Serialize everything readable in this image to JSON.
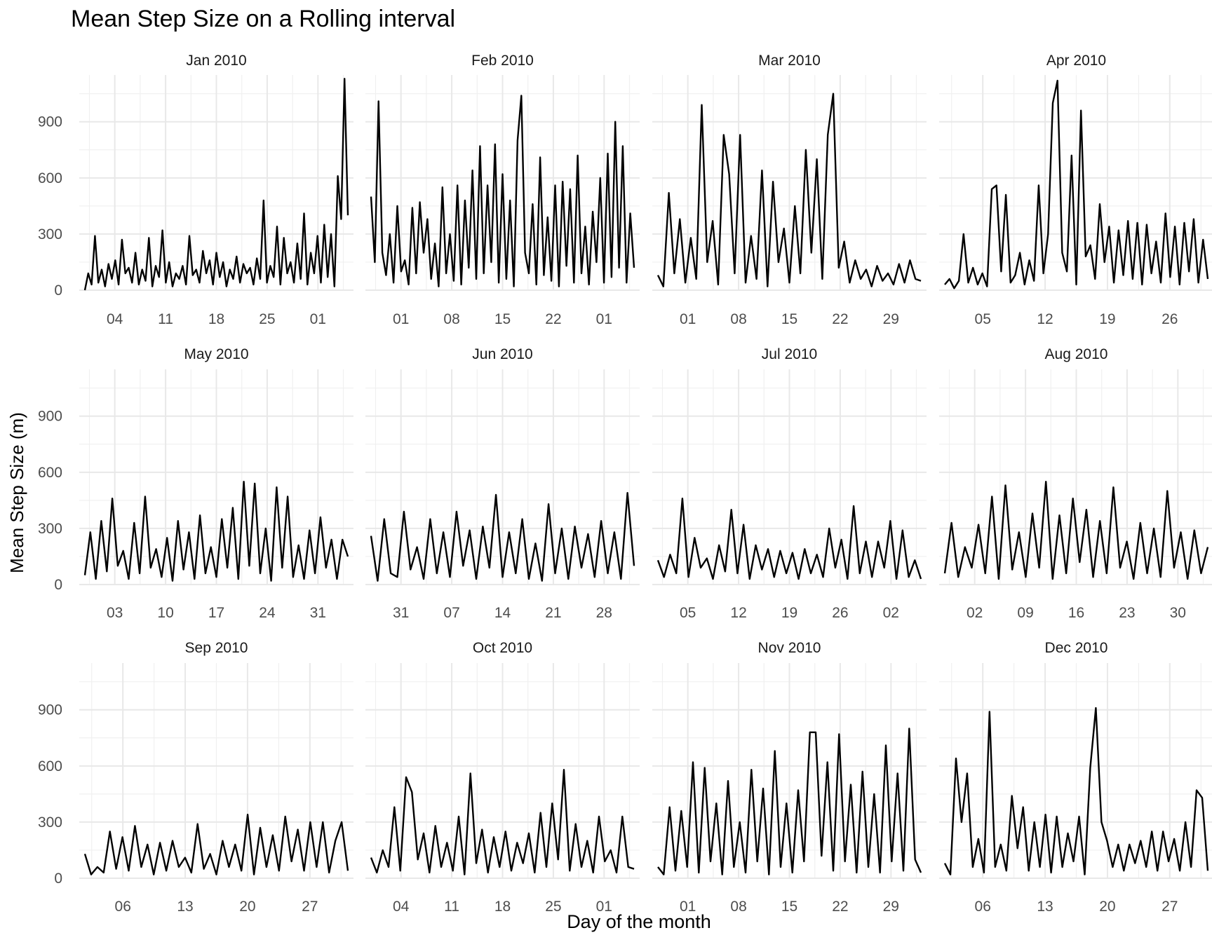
{
  "chart_data": {
    "type": "line",
    "title": "Mean Step Size on a Rolling interval",
    "xlabel": "Day of the month",
    "ylabel": "Mean Step Size (m)",
    "ylim": [
      0,
      1150
    ],
    "yticks": [
      0,
      300,
      600,
      900
    ],
    "grid": true,
    "line_color": "#000000",
    "panels": [
      {
        "label": "Jan 2010",
        "xticks": [
          "04",
          "11",
          "18",
          "25",
          "01"
        ],
        "peaks": [
          0,
          90,
          30,
          290,
          40,
          110,
          20,
          140,
          60,
          160,
          30,
          270,
          90,
          120,
          40,
          200,
          30,
          110,
          50,
          280,
          20,
          130,
          70,
          320,
          40,
          150,
          20,
          90,
          60,
          130,
          30,
          290,
          80,
          110,
          40,
          210,
          90,
          160,
          30,
          200,
          70,
          150,
          20,
          110,
          60,
          180,
          40,
          140,
          90,
          120,
          30,
          170,
          60,
          480,
          40,
          130,
          70,
          340,
          30,
          280,
          90,
          150,
          40,
          250,
          60,
          410,
          30,
          200,
          90,
          290,
          40,
          350,
          70,
          300,
          20,
          610,
          380,
          1130,
          400
        ]
      },
      {
        "label": "Feb 2010",
        "xticks": [
          "01",
          "08",
          "15",
          "22",
          "01"
        ],
        "peaks": [
          500,
          150,
          1010,
          200,
          80,
          300,
          40,
          450,
          100,
          160,
          30,
          440,
          90,
          470,
          200,
          380,
          60,
          250,
          20,
          550,
          90,
          300,
          50,
          560,
          30,
          480,
          120,
          640,
          60,
          770,
          90,
          560,
          150,
          780,
          40,
          620,
          60,
          480,
          20,
          800,
          1040,
          200,
          90,
          460,
          30,
          710,
          80,
          390,
          50,
          560,
          20,
          580,
          130,
          540,
          40,
          720,
          90,
          340,
          30,
          420,
          150,
          600,
          40,
          730,
          70,
          900,
          120,
          770,
          40,
          410,
          120
        ]
      },
      {
        "label": "Mar 2010",
        "xticks": [
          "01",
          "08",
          "15",
          "22",
          "29"
        ],
        "peaks": [
          80,
          20,
          520,
          90,
          380,
          40,
          280,
          60,
          990,
          150,
          370,
          30,
          830,
          620,
          90,
          830,
          40,
          290,
          60,
          640,
          20,
          580,
          150,
          330,
          40,
          450,
          90,
          750,
          200,
          700,
          60,
          830,
          1050,
          120,
          260,
          40,
          160,
          60,
          110,
          20,
          130,
          50,
          90,
          30,
          140,
          40,
          160,
          60,
          50
        ]
      },
      {
        "label": "Apr 2010",
        "xticks": [
          "05",
          "12",
          "19",
          "26"
        ],
        "peaks": [
          30,
          60,
          10,
          50,
          300,
          40,
          120,
          30,
          90,
          20,
          540,
          560,
          100,
          510,
          40,
          80,
          200,
          30,
          160,
          50,
          560,
          90,
          300,
          1000,
          1120,
          200,
          100,
          720,
          30,
          960,
          180,
          240,
          60,
          460,
          150,
          340,
          40,
          320,
          80,
          370,
          60,
          360,
          30,
          350,
          90,
          260,
          40,
          410,
          70,
          340,
          30,
          360,
          100,
          380,
          40,
          270,
          60
        ]
      },
      {
        "label": "May 2010",
        "xticks": [
          "03",
          "10",
          "17",
          "24",
          "31"
        ],
        "peaks": [
          50,
          280,
          30,
          340,
          70,
          460,
          100,
          180,
          30,
          330,
          60,
          470,
          90,
          190,
          40,
          250,
          20,
          340,
          80,
          280,
          30,
          370,
          60,
          200,
          40,
          350,
          90,
          410,
          30,
          550,
          100,
          540,
          60,
          300,
          20,
          520,
          90,
          470,
          40,
          210,
          30,
          290,
          60,
          360,
          90,
          240,
          30,
          240,
          150
        ]
      },
      {
        "label": "Jun 2010",
        "xticks": [
          "31",
          "07",
          "14",
          "21",
          "28"
        ],
        "peaks": [
          260,
          20,
          350,
          60,
          40,
          390,
          80,
          200,
          30,
          350,
          60,
          280,
          40,
          390,
          100,
          290,
          30,
          310,
          90,
          480,
          40,
          280,
          60,
          350,
          30,
          220,
          20,
          430,
          60,
          300,
          30,
          310,
          90,
          270,
          40,
          340,
          60,
          280,
          30,
          490,
          100
        ]
      },
      {
        "label": "Jul 2010",
        "xticks": [
          "05",
          "12",
          "19",
          "26",
          "02"
        ],
        "peaks": [
          130,
          40,
          160,
          60,
          460,
          40,
          250,
          90,
          140,
          30,
          210,
          70,
          400,
          60,
          320,
          30,
          210,
          80,
          190,
          40,
          180,
          60,
          170,
          30,
          190,
          60,
          160,
          40,
          300,
          90,
          240,
          30,
          420,
          60,
          230,
          40,
          230,
          90,
          340,
          30,
          290,
          40,
          130,
          30
        ]
      },
      {
        "label": "Aug 2010",
        "xticks": [
          "02",
          "09",
          "16",
          "23",
          "30"
        ],
        "peaks": [
          60,
          330,
          40,
          200,
          90,
          320,
          60,
          470,
          30,
          530,
          80,
          280,
          40,
          380,
          90,
          550,
          30,
          370,
          60,
          460,
          120,
          400,
          40,
          340,
          60,
          520,
          90,
          230,
          30,
          330,
          60,
          300,
          40,
          500,
          90,
          280,
          30,
          290,
          60,
          200
        ]
      },
      {
        "label": "Sep 2010",
        "xticks": [
          "06",
          "13",
          "20",
          "27"
        ],
        "peaks": [
          130,
          20,
          60,
          30,
          250,
          50,
          220,
          40,
          280,
          60,
          180,
          20,
          190,
          40,
          200,
          60,
          110,
          30,
          290,
          50,
          130,
          20,
          200,
          60,
          180,
          40,
          340,
          20,
          270,
          60,
          230,
          40,
          330,
          90,
          260,
          40,
          300,
          60,
          300,
          30,
          200,
          300,
          40
        ]
      },
      {
        "label": "Oct 2010",
        "xticks": [
          "04",
          "11",
          "18",
          "25",
          "01"
        ],
        "peaks": [
          110,
          30,
          150,
          60,
          380,
          40,
          540,
          460,
          100,
          240,
          30,
          280,
          60,
          190,
          40,
          330,
          20,
          560,
          80,
          260,
          30,
          220,
          60,
          250,
          40,
          190,
          80,
          240,
          30,
          350,
          60,
          400,
          100,
          580,
          40,
          290,
          60,
          200,
          30,
          330,
          90,
          150,
          30,
          330,
          60,
          50
        ]
      },
      {
        "label": "Nov 2010",
        "xticks": [
          "01",
          "08",
          "15",
          "22",
          "29"
        ],
        "peaks": [
          60,
          20,
          380,
          40,
          360,
          60,
          620,
          30,
          590,
          90,
          400,
          20,
          520,
          60,
          300,
          30,
          580,
          90,
          480,
          20,
          680,
          60,
          400,
          30,
          470,
          90,
          780,
          780,
          120,
          620,
          40,
          770,
          90,
          500,
          30,
          570,
          60,
          450,
          30,
          710,
          90,
          560,
          40,
          800,
          100,
          30
        ]
      },
      {
        "label": "Dec 2010",
        "xticks": [
          "06",
          "13",
          "20",
          "27"
        ],
        "peaks": [
          80,
          20,
          640,
          300,
          560,
          60,
          210,
          30,
          890,
          60,
          180,
          40,
          440,
          160,
          380,
          40,
          300,
          60,
          340,
          30,
          330,
          60,
          240,
          90,
          330,
          20,
          590,
          910,
          300,
          200,
          60,
          180,
          40,
          180,
          80,
          200,
          60,
          250,
          40,
          250,
          90,
          210,
          40,
          300,
          60,
          470,
          430,
          40
        ]
      }
    ]
  }
}
